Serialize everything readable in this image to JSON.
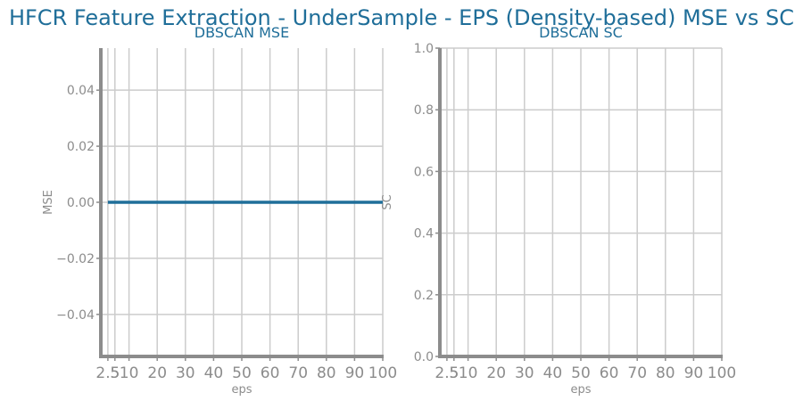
{
  "figure_title": "HFCR Feature Extraction - UnderSample - EPS (Density-based) MSE vs SC",
  "colors": {
    "title": "#1f6e99",
    "series": "#1f6e99",
    "grid": "#cccccc",
    "axis": "#8c8c8c",
    "tick_label": "#8c8c8c"
  },
  "chart_data": [
    {
      "type": "line",
      "title": "DBSCAN MSE",
      "xlabel": "eps",
      "ylabel": "MSE",
      "x_ticks": [
        2.5,
        5,
        10,
        20,
        30,
        40,
        50,
        60,
        70,
        80,
        90,
        100
      ],
      "x_tick_labels": [
        "2.5",
        "5",
        "10",
        "20",
        "30",
        "40",
        "50",
        "60",
        "70",
        "80",
        "90",
        "100"
      ],
      "y_ticks": [
        -0.04,
        -0.02,
        0.0,
        0.02,
        0.04
      ],
      "y_tick_labels": [
        "−0.04",
        "−0.02",
        "0.00",
        "0.02",
        "0.04"
      ],
      "xlim": [
        0,
        100
      ],
      "ylim": [
        -0.055,
        0.055
      ],
      "grid": true,
      "series": [
        {
          "x": [
            2.5,
            5,
            10,
            20,
            30,
            40,
            50,
            60,
            70,
            80,
            90,
            100
          ],
          "y": [
            0,
            0,
            0,
            0,
            0,
            0,
            0,
            0,
            0,
            0,
            0,
            0
          ]
        }
      ]
    },
    {
      "type": "line",
      "title": "DBSCAN SC",
      "xlabel": "eps",
      "ylabel": "SC",
      "x_ticks": [
        2.5,
        5,
        10,
        20,
        30,
        40,
        50,
        60,
        70,
        80,
        90,
        100
      ],
      "x_tick_labels": [
        "2.5",
        "5",
        "10",
        "20",
        "30",
        "40",
        "50",
        "60",
        "70",
        "80",
        "90",
        "100"
      ],
      "y_ticks": [
        0.0,
        0.2,
        0.4,
        0.6,
        0.8,
        1.0
      ],
      "y_tick_labels": [
        "0.0",
        "0.2",
        "0.4",
        "0.6",
        "0.8",
        "1.0"
      ],
      "xlim": [
        0,
        100
      ],
      "ylim": [
        0,
        1.0
      ],
      "grid": true,
      "series": []
    }
  ]
}
